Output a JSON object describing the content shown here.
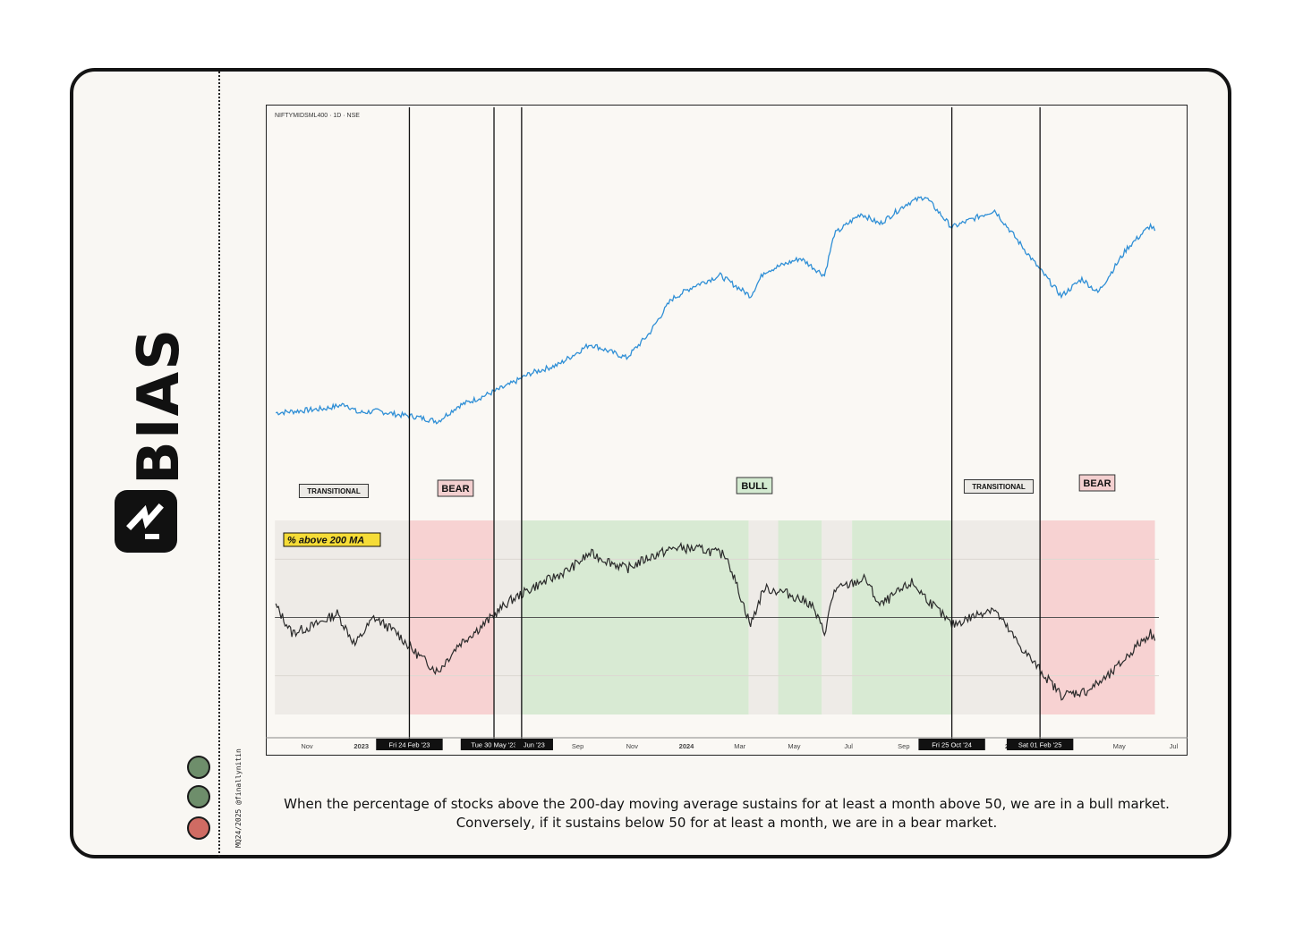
{
  "brand": {
    "name": "BIAS"
  },
  "credit": "MQ24/2025 @finallynitin",
  "status_dots": [
    {
      "color": "#6e8e6b"
    },
    {
      "color": "#6e8e6b"
    },
    {
      "color": "#cf6b63"
    }
  ],
  "caption": "When the percentage of stocks above the 200-day moving average sustains for at least a month above 50, we are in a bull market. Conversely, if it sustains below 50 for at least a month, we are in a bear market.",
  "chart_data": {
    "type": "line",
    "symbol_label": "NIFTYMIDSML400 · 1D · NSE",
    "indicator_label": "% above 200 MA",
    "x_ticks": [
      "Nov",
      "2023",
      "Mar",
      "May",
      "Jul",
      "Sep",
      "Nov",
      "2024",
      "Mar",
      "May",
      "Jul",
      "Sep",
      "Nov",
      "2025",
      "Mar",
      "May",
      "Jul"
    ],
    "event_markers": [
      {
        "date": "2023-02-24",
        "label": "Fri 24 Feb '23"
      },
      {
        "date": "2023-05-30",
        "label": "Tue 30 May '23"
      },
      {
        "date": "2023-06-30",
        "label": "Jun '23"
      },
      {
        "date": "2024-10-25",
        "label": "Fri 25 Oct '24"
      },
      {
        "date": "2025-02-01",
        "label": "Sat 01 Feb '25"
      }
    ],
    "regime_labels": [
      {
        "text": "TRANSITIONAL",
        "color": "#eceae6"
      },
      {
        "text": "BEAR",
        "color": "#f3cfcf"
      },
      {
        "text": "BULL",
        "color": "#d3ead0"
      },
      {
        "text": "TRANSITIONAL",
        "color": "#eceae6"
      },
      {
        "text": "BEAR",
        "color": "#f3cfcf"
      }
    ],
    "regime_bands": [
      {
        "start": "2022-09-26",
        "end": "2023-02-24",
        "regime": "transitional"
      },
      {
        "start": "2023-02-24",
        "end": "2023-05-30",
        "regime": "bear"
      },
      {
        "start": "2023-05-30",
        "end": "2023-06-30",
        "regime": "transitional"
      },
      {
        "start": "2023-06-30",
        "end": "2024-03-11",
        "regime": "bull"
      },
      {
        "start": "2024-03-11",
        "end": "2024-04-13",
        "regime": "transitional"
      },
      {
        "start": "2024-04-13",
        "end": "2024-06-01",
        "regime": "bull"
      },
      {
        "start": "2024-06-01",
        "end": "2024-07-05",
        "regime": "transitional"
      },
      {
        "start": "2024-07-05",
        "end": "2024-10-25",
        "regime": "bull"
      },
      {
        "start": "2024-10-25",
        "end": "2025-02-01",
        "regime": "transitional"
      },
      {
        "start": "2025-02-01",
        "end": "2025-06-10",
        "regime": "bear"
      }
    ],
    "price_series": {
      "color": "#2f8fd6",
      "points": [
        [
          "2022-09-27",
          11200
        ],
        [
          "2022-10-20",
          11250
        ],
        [
          "2022-11-20",
          11320
        ],
        [
          "2022-12-15",
          11450
        ],
        [
          "2022-12-28",
          11200
        ],
        [
          "2023-01-20",
          11250
        ],
        [
          "2023-02-10",
          11150
        ],
        [
          "2023-02-28",
          11100
        ],
        [
          "2023-03-28",
          10950
        ],
        [
          "2023-04-20",
          11400
        ],
        [
          "2023-05-15",
          11650
        ],
        [
          "2023-06-15",
          12000
        ],
        [
          "2023-07-10",
          12350
        ],
        [
          "2023-08-10",
          12600
        ],
        [
          "2023-09-15",
          13200
        ],
        [
          "2023-10-26",
          12800
        ],
        [
          "2023-11-20",
          13500
        ],
        [
          "2023-12-15",
          14500
        ],
        [
          "2024-01-10",
          14900
        ],
        [
          "2024-02-08",
          15200
        ],
        [
          "2024-03-13",
          14600
        ],
        [
          "2024-03-28",
          15300
        ],
        [
          "2024-05-08",
          15700
        ],
        [
          "2024-06-04",
          15200
        ],
        [
          "2024-06-15",
          16400
        ],
        [
          "2024-07-15",
          17000
        ],
        [
          "2024-08-05",
          16700
        ],
        [
          "2024-09-05",
          17300
        ],
        [
          "2024-09-25",
          17500
        ],
        [
          "2024-10-25",
          16600
        ],
        [
          "2024-12-12",
          17100
        ],
        [
          "2025-01-28",
          15500
        ],
        [
          "2025-02-25",
          14600
        ],
        [
          "2025-03-20",
          15100
        ],
        [
          "2025-04-07",
          14700
        ],
        [
          "2025-05-10",
          16000
        ],
        [
          "2025-06-05",
          16650
        ],
        [
          "2025-06-10",
          16500
        ]
      ]
    },
    "breadth_series": {
      "color": "#2b2b2b",
      "points": [
        [
          "2022-09-27",
          56
        ],
        [
          "2022-10-15",
          42
        ],
        [
          "2022-11-10",
          46
        ],
        [
          "2022-12-05",
          52
        ],
        [
          "2022-12-25",
          36
        ],
        [
          "2023-01-15",
          50
        ],
        [
          "2023-02-10",
          42
        ],
        [
          "2023-02-28",
          33
        ],
        [
          "2023-03-28",
          22
        ],
        [
          "2023-04-20",
          36
        ],
        [
          "2023-05-15",
          45
        ],
        [
          "2023-06-15",
          58
        ],
        [
          "2023-07-15",
          66
        ],
        [
          "2023-08-20",
          74
        ],
        [
          "2023-09-15",
          83
        ],
        [
          "2023-10-26",
          75
        ],
        [
          "2023-11-20",
          81
        ],
        [
          "2023-12-20",
          86
        ],
        [
          "2024-01-20",
          85
        ],
        [
          "2024-02-15",
          82
        ],
        [
          "2024-03-13",
          46
        ],
        [
          "2024-03-28",
          65
        ],
        [
          "2024-04-20",
          63
        ],
        [
          "2024-05-20",
          57
        ],
        [
          "2024-06-04",
          42
        ],
        [
          "2024-06-15",
          64
        ],
        [
          "2024-07-20",
          70
        ],
        [
          "2024-08-05",
          56
        ],
        [
          "2024-09-10",
          68
        ],
        [
          "2024-10-25",
          46
        ],
        [
          "2024-11-15",
          50
        ],
        [
          "2024-12-10",
          55
        ],
        [
          "2025-01-10",
          35
        ],
        [
          "2025-01-28",
          25
        ],
        [
          "2025-02-25",
          10
        ],
        [
          "2025-03-25",
          12
        ],
        [
          "2025-04-20",
          20
        ],
        [
          "2025-05-20",
          35
        ],
        [
          "2025-06-05",
          42
        ],
        [
          "2025-06-10",
          38
        ]
      ]
    },
    "breadth_reference_line": 50,
    "breadth_gridlines": [
      20,
      80
    ],
    "breadth_range": [
      0,
      100
    ]
  }
}
